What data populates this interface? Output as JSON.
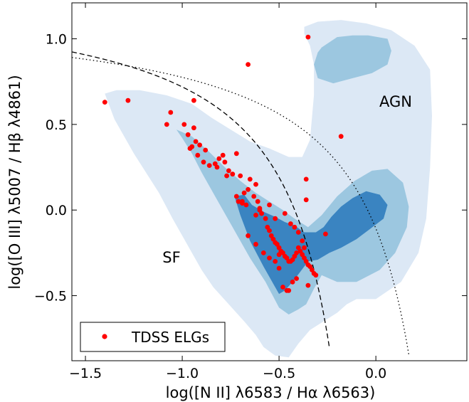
{
  "chart_data": {
    "type": "scatter",
    "title": "",
    "xlabel": "log([N II] λ6583 / Hα λ6563)",
    "ylabel": "log([O III] λ5007 / Hβ λ4861)",
    "xlim": [
      -1.57,
      0.47
    ],
    "ylim": [
      -0.88,
      1.21
    ],
    "x_ticks": [
      -1.5,
      -1.0,
      -0.5,
      0.0
    ],
    "x_tick_labels": [
      "−1.5",
      "−1.0",
      "−0.5",
      "0.0"
    ],
    "y_ticks": [
      -0.5,
      0.0,
      0.5,
      1.0
    ],
    "y_tick_labels": [
      "−0.5",
      "0.0",
      "0.5",
      "1.0"
    ],
    "grid": false,
    "legend": {
      "position": "bottom-left",
      "entries": [
        "TDSS ELGs"
      ]
    },
    "annotations": [
      {
        "text": "AGN",
        "x": 0.1,
        "y": 0.62
      },
      {
        "text": "SF",
        "x": -1.05,
        "y": -0.28
      }
    ],
    "colors": {
      "points": "#ff0000",
      "density_low": "#dce8f5",
      "density_mid": "#9cc7e0",
      "density_high": "#3a84c1"
    },
    "density_contours": [
      {
        "level": "low",
        "x": [
          -1.4,
          -1.34,
          -1.22,
          -1.08,
          -0.95,
          -0.85,
          -0.75,
          -0.65,
          -0.55,
          -0.45,
          -0.38,
          -0.34,
          -0.32,
          -0.32,
          -0.34,
          -0.37,
          -0.37,
          -0.3,
          -0.18,
          -0.05,
          0.08,
          0.2,
          0.28,
          0.29,
          0.28,
          0.26,
          0.22,
          0.13,
          0.0,
          -0.1,
          -0.15,
          -0.2,
          -0.27,
          -0.34,
          -0.4,
          -0.45,
          -0.52,
          -0.58,
          -0.62,
          -0.68,
          -0.76,
          -0.84,
          -0.9,
          -0.95,
          -1.0,
          -1.05,
          -1.12,
          -1.25,
          -1.35
        ],
        "y": [
          0.68,
          0.7,
          0.7,
          0.67,
          0.62,
          0.54,
          0.47,
          0.4,
          0.36,
          0.31,
          0.31,
          0.41,
          0.67,
          0.85,
          0.96,
          1.03,
          1.07,
          1.1,
          1.11,
          1.09,
          1.05,
          0.96,
          0.82,
          0.55,
          0.25,
          -0.05,
          -0.25,
          -0.42,
          -0.52,
          -0.52,
          -0.55,
          -0.6,
          -0.65,
          -0.7,
          -0.78,
          -0.86,
          -0.85,
          -0.8,
          -0.73,
          -0.65,
          -0.55,
          -0.45,
          -0.35,
          -0.25,
          -0.15,
          -0.05,
          0.1,
          0.33,
          0.53
        ]
      },
      {
        "level": "mid",
        "x": [
          -1.03,
          -0.95,
          -0.87,
          -0.78,
          -0.7,
          -0.62,
          -0.55,
          -0.48,
          -0.42,
          -0.35,
          -0.28,
          -0.2,
          -0.11,
          -0.02,
          0.06,
          0.14,
          0.17,
          0.16,
          0.1,
          0.02,
          -0.1,
          -0.2,
          -0.28,
          -0.32,
          -0.36,
          -0.4,
          -0.45,
          -0.5,
          -0.57,
          -0.65,
          -0.74,
          -0.83,
          -0.9,
          -0.95,
          -1.0
        ],
        "y": [
          0.47,
          0.43,
          0.35,
          0.25,
          0.17,
          0.1,
          0.05,
          0.0,
          -0.05,
          -0.1,
          -0.03,
          0.08,
          0.17,
          0.23,
          0.24,
          0.16,
          0.02,
          -0.1,
          -0.25,
          -0.35,
          -0.42,
          -0.42,
          -0.38,
          -0.46,
          -0.55,
          -0.58,
          -0.61,
          -0.57,
          -0.42,
          -0.28,
          -0.1,
          0.08,
          0.22,
          0.33,
          0.42
        ]
      },
      {
        "level": "mid",
        "x": [
          -0.28,
          -0.2,
          -0.12,
          -0.04,
          0.06,
          0.08,
          0.06,
          -0.02,
          -0.12,
          -0.22,
          -0.3,
          -0.32,
          -0.3
        ],
        "y": [
          0.95,
          1.01,
          1.02,
          1.02,
          1.0,
          0.93,
          0.85,
          0.8,
          0.77,
          0.74,
          0.77,
          0.85,
          0.92
        ]
      },
      {
        "level": "high",
        "x": [
          -0.73,
          -0.68,
          -0.64,
          -0.58,
          -0.52,
          -0.47,
          -0.42,
          -0.37,
          -0.31,
          -0.27,
          -0.23,
          -0.18,
          -0.12,
          -0.05,
          0.02,
          0.06,
          0.04,
          -0.03,
          -0.1,
          -0.18,
          -0.24,
          -0.3,
          -0.35,
          -0.39,
          -0.43,
          -0.47,
          -0.5,
          -0.53,
          -0.58,
          -0.65,
          -0.7
        ],
        "y": [
          0.08,
          0.09,
          0.03,
          -0.01,
          -0.04,
          -0.07,
          -0.09,
          -0.13,
          -0.13,
          -0.1,
          -0.04,
          0.02,
          0.07,
          0.11,
          0.09,
          0.03,
          -0.05,
          -0.11,
          -0.17,
          -0.22,
          -0.25,
          -0.29,
          -0.3,
          -0.36,
          -0.42,
          -0.47,
          -0.49,
          -0.43,
          -0.33,
          -0.18,
          -0.03
        ]
      }
    ],
    "lines": [
      {
        "name": "",
        "style": "dashed",
        "formula": "0.61/(x-0.05)+1.3",
        "x_range": [
          -1.57,
          -0.24
        ]
      },
      {
        "name": "",
        "style": "dotted",
        "formula": "0.61/(x-0.47)+1.19",
        "x_range": [
          -1.57,
          0.17
        ]
      }
    ],
    "series": [
      {
        "name": "TDSS ELGs",
        "x": [
          -1.4,
          -1.28,
          -0.94,
          -1.06,
          -1.08,
          -0.99,
          -0.97,
          -0.94,
          -0.93,
          -0.95,
          -0.91,
          -0.96,
          -0.88,
          -0.89,
          -0.92,
          -0.83,
          -0.81,
          -0.82,
          -0.79,
          -0.78,
          -0.76,
          -0.74,
          -0.72,
          -0.7,
          -0.71,
          -0.69,
          -0.67,
          -0.68,
          -0.66,
          -0.65,
          -0.63,
          -0.62,
          -0.61,
          -0.6,
          -0.59,
          -0.57,
          -0.56,
          -0.55,
          -0.54,
          -0.53,
          -0.52,
          -0.51,
          -0.5,
          -0.49,
          -0.48,
          -0.47,
          -0.46,
          -0.45,
          -0.44,
          -0.43,
          -0.42,
          -0.41,
          -0.4,
          -0.39,
          -0.38,
          -0.37,
          -0.36,
          -0.35,
          -0.34,
          -0.33,
          -0.32,
          -0.31,
          -0.48,
          -0.46,
          -0.45,
          -0.43,
          -0.41,
          -0.5,
          -0.52,
          -0.55,
          -0.58,
          -0.62,
          -0.66,
          -0.72,
          -0.77,
          -0.86,
          -0.69,
          -0.6,
          -0.36,
          -0.26,
          -0.18,
          -0.35,
          -0.66,
          -0.35,
          -0.55,
          -0.52,
          -0.47,
          -0.44,
          -0.42,
          -0.4,
          -0.38,
          -0.37,
          -0.62,
          -0.5,
          -0.36
        ],
        "y": [
          0.63,
          0.64,
          0.64,
          0.57,
          0.5,
          0.5,
          0.44,
          0.48,
          0.4,
          0.37,
          0.38,
          0.36,
          0.35,
          0.28,
          0.32,
          0.27,
          0.3,
          0.25,
          0.32,
          0.28,
          0.23,
          0.21,
          0.33,
          0.2,
          0.05,
          0.04,
          0.03,
          0.1,
          0.12,
          0.18,
          0.08,
          0.15,
          0.05,
          0.0,
          -0.02,
          -0.05,
          -0.1,
          -0.12,
          -0.15,
          -0.17,
          -0.19,
          -0.2,
          -0.22,
          -0.24,
          -0.25,
          -0.27,
          -0.28,
          -0.3,
          -0.3,
          -0.29,
          -0.27,
          -0.25,
          -0.22,
          -0.24,
          -0.26,
          -0.28,
          -0.3,
          -0.32,
          -0.33,
          -0.35,
          -0.37,
          -0.38,
          -0.45,
          -0.47,
          -0.47,
          -0.42,
          -0.4,
          -0.34,
          -0.3,
          -0.28,
          -0.25,
          -0.2,
          -0.15,
          0.08,
          0.2,
          0.26,
          0.05,
          0.01,
          0.06,
          -0.14,
          0.43,
          -0.44,
          0.85,
          1.01,
          0.03,
          -0.05,
          -0.02,
          -0.08,
          -0.1,
          -0.13,
          -0.18,
          -0.22,
          -0.03,
          -0.26,
          0.18
        ]
      }
    ]
  }
}
